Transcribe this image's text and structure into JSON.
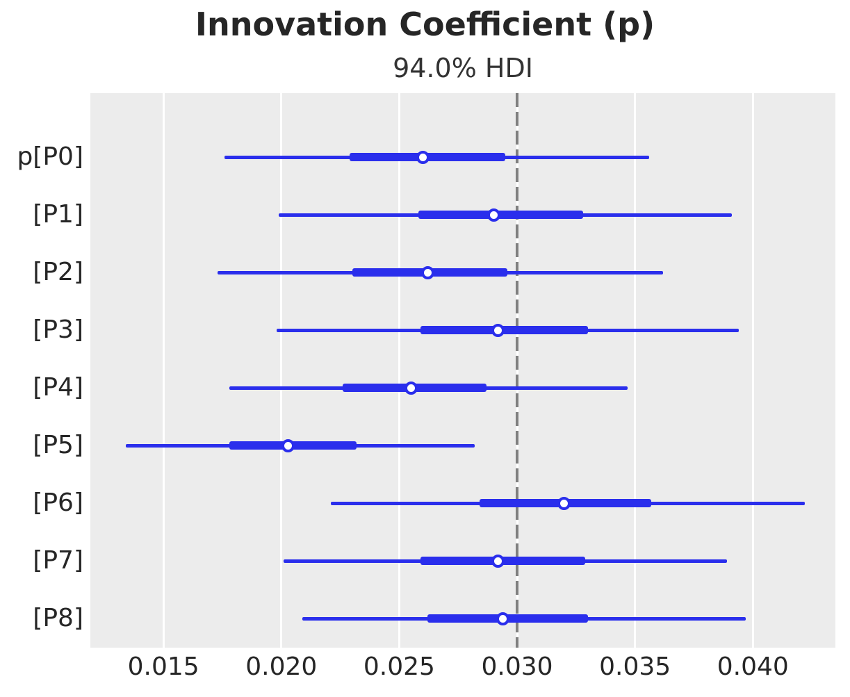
{
  "figure": {
    "title": "Innovation Coefficient (p)",
    "subtitle": "94.0% HDI"
  },
  "chart_data": {
    "type": "forest",
    "title": "Innovation Coefficient (p)",
    "subtitle": "94.0% HDI",
    "hdi_probability": "94.0%",
    "legend_position": "none",
    "grid": "on",
    "xlim": [
      0.0119,
      0.0435
    ],
    "x_ticks": [
      0.015,
      0.02,
      0.025,
      0.03,
      0.035,
      0.04
    ],
    "x_tick_labels": [
      "0.015",
      "0.020",
      "0.025",
      "0.030",
      "0.035",
      "0.040"
    ],
    "reference_line_x": 0.03,
    "rows": [
      {
        "label": "p[P0]",
        "hdi_low": 0.0176,
        "quartile_low": 0.0229,
        "point": 0.026,
        "quartile_high": 0.0295,
        "hdi_high": 0.0356
      },
      {
        "label": "[P1]",
        "hdi_low": 0.0199,
        "quartile_low": 0.0258,
        "point": 0.029,
        "quartile_high": 0.0328,
        "hdi_high": 0.0391
      },
      {
        "label": "[P2]",
        "hdi_low": 0.0173,
        "quartile_low": 0.023,
        "point": 0.0262,
        "quartile_high": 0.0296,
        "hdi_high": 0.0362
      },
      {
        "label": "[P3]",
        "hdi_low": 0.0198,
        "quartile_low": 0.0259,
        "point": 0.0292,
        "quartile_high": 0.033,
        "hdi_high": 0.0394
      },
      {
        "label": "[P4]",
        "hdi_low": 0.0178,
        "quartile_low": 0.0226,
        "point": 0.0255,
        "quartile_high": 0.0287,
        "hdi_high": 0.0347
      },
      {
        "label": "[P5]",
        "hdi_low": 0.0134,
        "quartile_low": 0.0178,
        "point": 0.0203,
        "quartile_high": 0.0232,
        "hdi_high": 0.0282
      },
      {
        "label": "[P6]",
        "hdi_low": 0.0221,
        "quartile_low": 0.0284,
        "point": 0.032,
        "quartile_high": 0.0357,
        "hdi_high": 0.0422
      },
      {
        "label": "[P7]",
        "hdi_low": 0.0201,
        "quartile_low": 0.0259,
        "point": 0.0292,
        "quartile_high": 0.0329,
        "hdi_high": 0.0389
      },
      {
        "label": "[P8]",
        "hdi_low": 0.0209,
        "quartile_low": 0.0262,
        "point": 0.0294,
        "quartile_high": 0.033,
        "hdi_high": 0.0397
      }
    ],
    "colors": {
      "interval": "#2a2eec",
      "marker_fill": "#ffffff",
      "reference_line": "#7f7f7f",
      "plot_background": "#ececec",
      "gridline": "#ffffff",
      "text": "#262626"
    }
  }
}
